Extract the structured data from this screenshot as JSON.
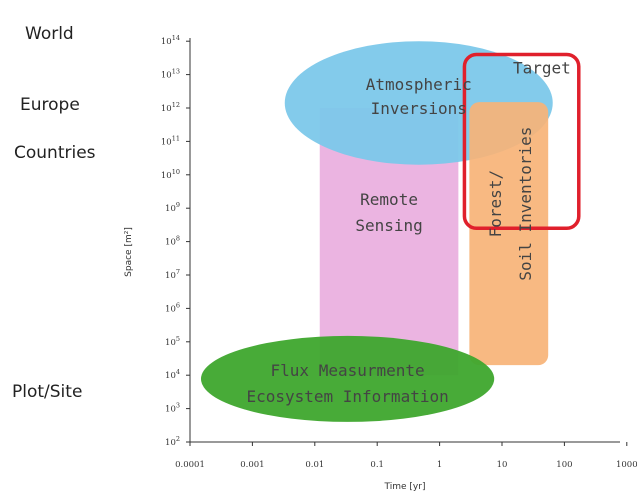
{
  "scale_labels": {
    "world": "World",
    "europe": "Europe",
    "countries": "Countries",
    "plot_site": "Plot/Site"
  },
  "chart_data": {
    "type": "area",
    "xlabel": "Time [yr]",
    "ylabel": "Space [m²]",
    "x_scale": "log",
    "y_scale": "log",
    "x_ticks": [
      "0.0001",
      "0.001",
      "0.01",
      "0.1",
      "1",
      "10",
      "100",
      "1000"
    ],
    "x_tick_values": [
      0.0001,
      0.001,
      0.01,
      0.1,
      1,
      10,
      100,
      1000
    ],
    "y_tick_exponents": [
      2,
      3,
      4,
      5,
      6,
      7,
      8,
      9,
      10,
      11,
      12,
      13,
      14
    ],
    "grid": false,
    "regions": [
      {
        "name": "remote-sensing",
        "shape": "rect",
        "label_lines": [
          "Remote",
          "Sensing"
        ],
        "x_range": [
          0.012,
          2
        ],
        "y_range": [
          10000.0,
          1000000000000.0
        ],
        "color": "#e8a7dc"
      },
      {
        "name": "atmospheric-inversions",
        "shape": "ellipse",
        "label_lines": [
          "Atmospheric",
          "Inversions"
        ],
        "x_range": [
          0.0033,
          65
        ],
        "y_range": [
          20000000000.0,
          100000000000000.0
        ],
        "color": "#7cc8ea"
      },
      {
        "name": "forest-soil-inventories",
        "shape": "rect",
        "label_lines": [
          "Forest/",
          "Soil Inventories"
        ],
        "x_range": [
          3,
          55
        ],
        "y_range": [
          20000.0,
          1500000000000.0
        ],
        "color": "#f7b377",
        "vertical_text": true
      },
      {
        "name": "flux-measurements",
        "shape": "ellipse",
        "label_lines": [
          "Flux Measurmente",
          "Ecosystem Information"
        ],
        "x_range": [
          0.00015,
          7.5
        ],
        "y_range": [
          400.0,
          150000.0
        ],
        "color": "#3ea72d"
      },
      {
        "name": "target",
        "shape": "outline-rect",
        "label_lines": [
          "Target"
        ],
        "x_range": [
          2.5,
          170
        ],
        "y_range": [
          250000000.0,
          40000000000000.0
        ],
        "color": "#e0202c"
      }
    ]
  }
}
